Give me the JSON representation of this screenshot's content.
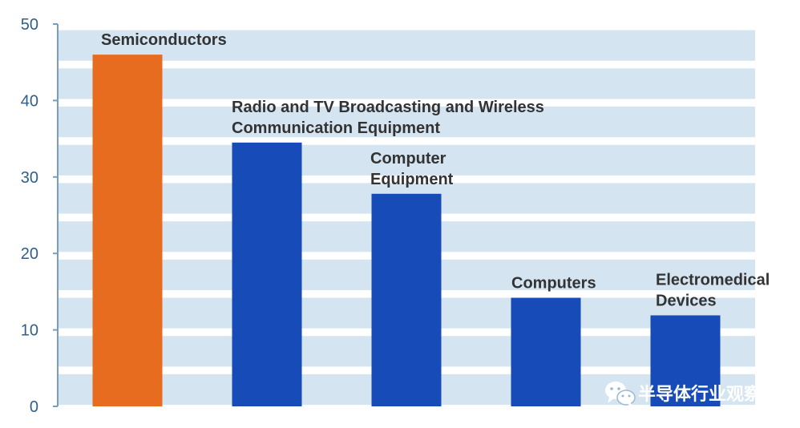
{
  "chart_data": {
    "type": "bar",
    "title": "",
    "xlabel": "",
    "ylabel": "",
    "ylim": [
      0,
      50
    ],
    "yticks": [
      0,
      10,
      20,
      30,
      40,
      50
    ],
    "grid": "horizontal bands",
    "categories": [
      [
        "Semiconductors"
      ],
      [
        "Radio and TV Broadcasting and Wireless",
        "Communication Equipment"
      ],
      [
        "Computer",
        "Equipment"
      ],
      [
        "Computers"
      ],
      [
        "Electromedical",
        "Devices"
      ]
    ],
    "values": [
      46,
      34.5,
      27.8,
      14.2,
      11.9
    ],
    "bar_colors": [
      "#e86c1f",
      "#164bb8",
      "#164bb8",
      "#164bb8",
      "#164bb8"
    ],
    "band_color": "#d4e4f1",
    "axis_color": "#7a9cbd",
    "tick_color": "#2f5f8a"
  },
  "watermark": {
    "icon": "wechat-icon",
    "text": "半导体行业观察"
  }
}
